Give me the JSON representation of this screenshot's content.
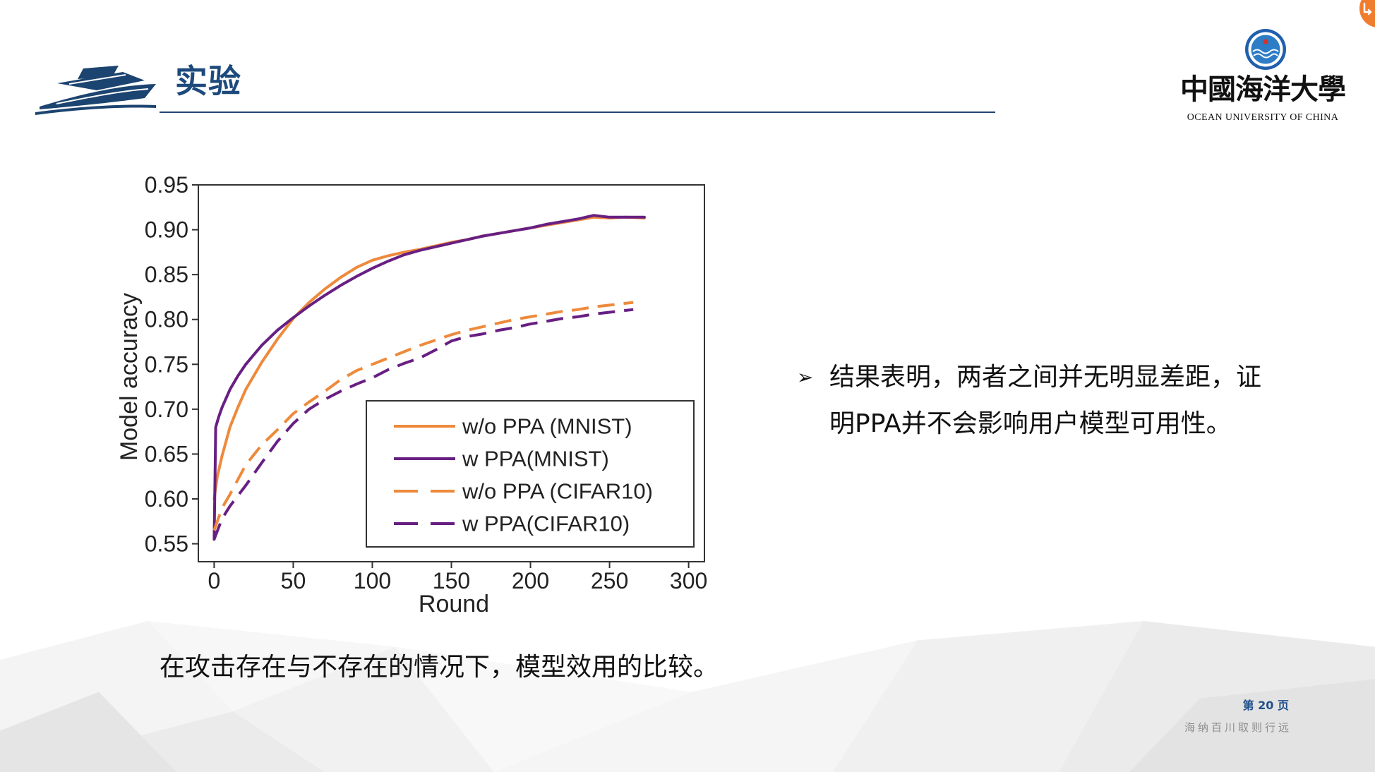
{
  "slide": {
    "title": "实验",
    "caption": "在攻击存在与不存在的情况下，模型效用的比较。",
    "bullet_marker": "➢",
    "bullet_text": "结果表明，两者之间并无明显差距，证明PPA并不会影响用户模型可用性。"
  },
  "logo": {
    "university_name_cn": "中國海洋大學",
    "university_name_en": "OCEAN UNIVERSITY OF CHINA",
    "ship_icon": "ship-logo-icon",
    "emblem_icon": "university-emblem-icon"
  },
  "footer": {
    "page_label": "第 20 页",
    "motto": "海纳百川取则行远"
  },
  "widgets": {
    "corner_badge_icon": "corner-badge-icon"
  },
  "colors": {
    "title": "#1d4a7c",
    "rule_line": "#24446e",
    "page_number": "#1f4f8a",
    "motto": "#8c8c8c",
    "badge_orange": "#f07d2e"
  },
  "chart_data": {
    "type": "line",
    "xlabel": "Round",
    "ylabel": "Model accuracy",
    "xlim": [
      -10,
      310
    ],
    "ylim": [
      0.53,
      0.95
    ],
    "xticks": [
      "0",
      "50",
      "100",
      "150",
      "200",
      "250",
      "300"
    ],
    "yticks": [
      "0.55",
      "0.60",
      "0.65",
      "0.70",
      "0.75",
      "0.80",
      "0.85",
      "0.90",
      "0.95"
    ],
    "grid": false,
    "legend_position": "lower-right",
    "series": [
      {
        "name": "w/o PPA (MNIST)",
        "color": "#ee8a3c",
        "style": "solid",
        "x": [
          0,
          2,
          5,
          10,
          15,
          20,
          30,
          40,
          50,
          60,
          70,
          80,
          90,
          100,
          110,
          120,
          130,
          140,
          150,
          160,
          170,
          180,
          190,
          200,
          210,
          220,
          230,
          240,
          250,
          260,
          272
        ],
        "y": [
          0.6,
          0.625,
          0.648,
          0.68,
          0.702,
          0.722,
          0.752,
          0.778,
          0.801,
          0.819,
          0.834,
          0.847,
          0.858,
          0.866,
          0.871,
          0.875,
          0.878,
          0.882,
          0.886,
          0.889,
          0.893,
          0.896,
          0.899,
          0.902,
          0.905,
          0.908,
          0.911,
          0.914,
          0.913,
          0.914,
          0.913
        ]
      },
      {
        "name": "w PPA(MNIST)",
        "color": "#681f82",
        "style": "solid",
        "x": [
          0,
          1,
          3,
          5,
          10,
          15,
          20,
          30,
          40,
          50,
          60,
          70,
          80,
          90,
          100,
          110,
          120,
          130,
          140,
          150,
          160,
          170,
          180,
          190,
          200,
          210,
          220,
          230,
          240,
          250,
          260,
          272
        ],
        "y": [
          0.555,
          0.68,
          0.692,
          0.702,
          0.722,
          0.737,
          0.75,
          0.771,
          0.788,
          0.802,
          0.815,
          0.827,
          0.838,
          0.848,
          0.857,
          0.865,
          0.872,
          0.877,
          0.881,
          0.885,
          0.889,
          0.893,
          0.896,
          0.899,
          0.902,
          0.906,
          0.909,
          0.912,
          0.916,
          0.914,
          0.914,
          0.914
        ]
      },
      {
        "name": "w/o PPA (CIFAR10)",
        "color": "#ee8a3c",
        "style": "dashed",
        "x": [
          0,
          5,
          10,
          20,
          30,
          40,
          50,
          60,
          70,
          80,
          90,
          100,
          110,
          120,
          130,
          140,
          150,
          160,
          170,
          180,
          190,
          200,
          210,
          220,
          230,
          240,
          250,
          265
        ],
        "y": [
          0.565,
          0.59,
          0.605,
          0.638,
          0.66,
          0.677,
          0.695,
          0.708,
          0.72,
          0.733,
          0.743,
          0.75,
          0.757,
          0.764,
          0.771,
          0.777,
          0.783,
          0.788,
          0.792,
          0.796,
          0.8,
          0.803,
          0.806,
          0.809,
          0.811,
          0.814,
          0.816,
          0.819
        ]
      },
      {
        "name": "w PPA(CIFAR10)",
        "color": "#681f82",
        "style": "dashed",
        "x": [
          0,
          5,
          10,
          20,
          30,
          40,
          50,
          60,
          70,
          80,
          90,
          100,
          110,
          120,
          130,
          140,
          150,
          160,
          170,
          180,
          190,
          200,
          210,
          220,
          230,
          240,
          250,
          265
        ],
        "y": [
          0.555,
          0.578,
          0.592,
          0.615,
          0.64,
          0.664,
          0.684,
          0.7,
          0.711,
          0.72,
          0.728,
          0.735,
          0.744,
          0.751,
          0.757,
          0.766,
          0.776,
          0.781,
          0.784,
          0.788,
          0.791,
          0.795,
          0.798,
          0.801,
          0.803,
          0.806,
          0.808,
          0.811
        ]
      }
    ]
  }
}
